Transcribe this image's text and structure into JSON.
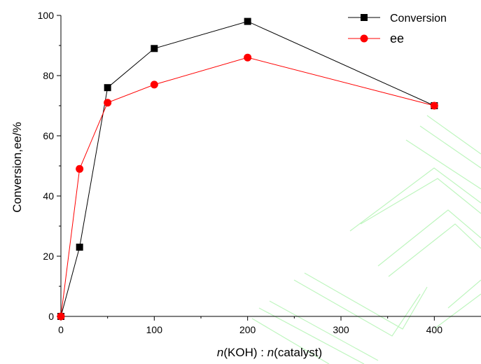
{
  "chart_data": {
    "type": "line",
    "title": "",
    "xlabel_italic_1": "n",
    "xlabel_part_1": "(KOH)",
    "xlabel_sep": " : ",
    "xlabel_italic_2": "n",
    "xlabel_part_2": "(catalyst)",
    "ylabel": "Conversion,ee/%",
    "xlim": [
      0,
      450
    ],
    "ylim": [
      0,
      100
    ],
    "x_ticks": [
      "0",
      "100",
      "200",
      "300",
      "400"
    ],
    "y_ticks": [
      "0",
      "20",
      "40",
      "60",
      "80",
      "100"
    ],
    "grid": false,
    "legend_position": "top-right",
    "series": [
      {
        "name": "Conversion",
        "color": "#000000",
        "marker": "square",
        "x": [
          0,
          20,
          50,
          100,
          200,
          400
        ],
        "y": [
          0,
          23,
          76,
          89,
          98,
          70
        ]
      },
      {
        "name": "ee",
        "color": "#ff0000",
        "marker": "circle",
        "x": [
          0,
          20,
          50,
          100,
          200,
          400
        ],
        "y": [
          0,
          49,
          71,
          77,
          86,
          70
        ]
      }
    ]
  }
}
